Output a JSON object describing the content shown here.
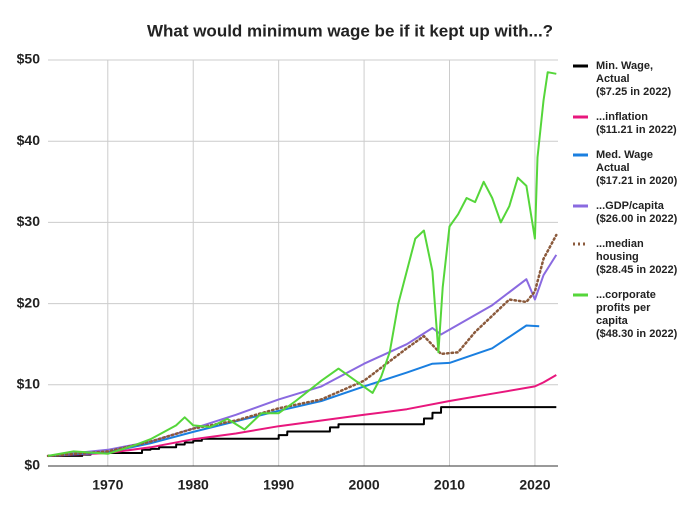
{
  "chart_data": {
    "type": "line",
    "title": "What would minimum wage be if it kept up with...?",
    "xlim": [
      1963,
      2022.7
    ],
    "xticks": [
      1970,
      1980,
      1990,
      2000,
      2010,
      2020
    ],
    "ylim": [
      0,
      50
    ],
    "yticks": [
      {
        "value": 0,
        "label": "$0"
      },
      {
        "value": 10,
        "label": "$10"
      },
      {
        "value": 20,
        "label": "$20"
      },
      {
        "value": 30,
        "label": "$30"
      },
      {
        "value": 40,
        "label": "$40"
      },
      {
        "value": 50,
        "label": "$50"
      }
    ],
    "grid": true,
    "legend": "right",
    "series": [
      {
        "name": [
          "Min. Wage,",
          "Actual",
          "($7.25 in 2022)"
        ],
        "color": "#000000",
        "style": "solid",
        "x": [
          1963,
          1967,
          1967.01,
          1968,
          1968.01,
          1974,
          1974.01,
          1975,
          1975.01,
          1976,
          1976.01,
          1978,
          1978.01,
          1979,
          1979.01,
          1980,
          1980.01,
          1981,
          1981.01,
          1990,
          1990.01,
          1991,
          1991.01,
          1996,
          1996.01,
          1997,
          1997.01,
          2007,
          2007.01,
          2008,
          2008.01,
          2009,
          2009.01,
          2022.5
        ],
        "values": [
          1.25,
          1.25,
          1.4,
          1.4,
          1.6,
          1.6,
          2.0,
          2.0,
          2.1,
          2.1,
          2.3,
          2.3,
          2.65,
          2.65,
          2.9,
          2.9,
          3.1,
          3.1,
          3.35,
          3.35,
          3.8,
          3.8,
          4.25,
          4.25,
          4.75,
          4.75,
          5.15,
          5.15,
          5.85,
          5.85,
          6.55,
          6.55,
          7.25,
          7.25
        ]
      },
      {
        "name": [
          "...inflation",
          "($11.21 in 2022)"
        ],
        "color": "#e8177d",
        "style": "solid",
        "x": [
          1963,
          1970,
          1975,
          1980,
          1985,
          1990,
          1995,
          2000,
          2005,
          2010,
          2015,
          2020,
          2021,
          2022.5
        ],
        "values": [
          1.25,
          1.6,
          2.3,
          3.3,
          4.0,
          4.9,
          5.6,
          6.3,
          7.0,
          8.0,
          8.9,
          9.8,
          10.3,
          11.21
        ]
      },
      {
        "name": [
          "Med. Wage",
          "Actual",
          "($17.21 in 2020)"
        ],
        "color": "#1a7fe0",
        "style": "solid",
        "x": [
          1963,
          1970,
          1975,
          1980,
          1985,
          1990,
          1995,
          2000,
          2005,
          2008,
          2010,
          2015,
          2019,
          2020.5
        ],
        "values": [
          1.25,
          1.7,
          2.8,
          4.2,
          5.5,
          6.8,
          8.0,
          9.8,
          11.5,
          12.6,
          12.7,
          14.5,
          17.3,
          17.21
        ]
      },
      {
        "name": [
          "...GDP/capita",
          "($26.00 in 2022)"
        ],
        "color": "#8a6ae0",
        "style": "solid",
        "x": [
          1963,
          1970,
          1975,
          1980,
          1985,
          1990,
          1995,
          2000,
          2005,
          2008,
          2009,
          2015,
          2019,
          2020,
          2021,
          2022.5
        ],
        "values": [
          1.25,
          2.0,
          3.0,
          4.6,
          6.3,
          8.2,
          9.8,
          12.6,
          15.0,
          17.0,
          16.2,
          19.8,
          23.0,
          20.5,
          23.5,
          26.0
        ]
      },
      {
        "name": [
          "...median",
          "housing",
          "($28.45 in 2022)"
        ],
        "color": "#8b5a3c",
        "style": "dotted",
        "x": [
          1963,
          1970,
          1975,
          1980,
          1985,
          1990,
          1995,
          2000,
          2005,
          2007,
          2009,
          2011,
          2013,
          2015,
          2017,
          2019,
          2020,
          2021,
          2022.5
        ],
        "values": [
          1.25,
          1.8,
          3.0,
          4.6,
          5.6,
          7.1,
          8.2,
          10.5,
          14.5,
          16.0,
          13.8,
          14.0,
          16.5,
          18.5,
          20.5,
          20.2,
          21.5,
          25.5,
          28.45
        ]
      },
      {
        "name": [
          "...corporate",
          "profits per",
          "capita",
          "($48.30 in 2022)"
        ],
        "color": "#55d63a",
        "style": "solid",
        "x": [
          1963,
          1966,
          1970,
          1973,
          1975,
          1978,
          1979,
          1980,
          1982,
          1984,
          1986,
          1988,
          1990,
          1992,
          1995,
          1997,
          1999,
          2001,
          2002,
          2003,
          2004,
          2005,
          2006,
          2007,
          2008,
          2008.7,
          2009.2,
          2010,
          2011,
          2012,
          2013,
          2014,
          2015,
          2016,
          2017,
          2018,
          2019,
          2020,
          2020.3,
          2021,
          2021.5,
          2022.5
        ],
        "values": [
          1.25,
          1.8,
          1.5,
          2.5,
          3.3,
          5.0,
          6.0,
          5.0,
          4.8,
          5.8,
          4.5,
          6.5,
          6.5,
          8.0,
          10.5,
          12.0,
          10.5,
          9.0,
          11.0,
          14.0,
          20.0,
          24.0,
          28.0,
          29.0,
          24.0,
          14.0,
          22.0,
          29.5,
          31.0,
          33.0,
          32.5,
          35.0,
          33.0,
          30.0,
          32.0,
          35.5,
          34.5,
          28.0,
          38.0,
          45.0,
          48.5,
          48.3
        ]
      }
    ]
  }
}
